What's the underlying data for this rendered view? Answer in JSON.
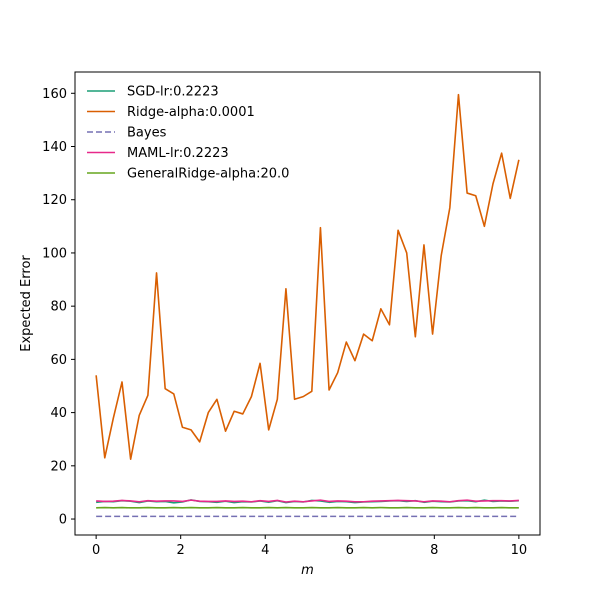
{
  "chart_data": {
    "type": "line",
    "title": "",
    "xlabel": "m",
    "ylabel": "Expected Error",
    "xlim": [
      -0.5,
      10.5
    ],
    "ylim": [
      -6,
      168
    ],
    "xticks": [
      0,
      2,
      4,
      6,
      8,
      10
    ],
    "xtick_labels": [
      "0",
      "2",
      "4",
      "6",
      "8",
      "10"
    ],
    "yticks": [
      0,
      20,
      40,
      60,
      80,
      100,
      120,
      140,
      160
    ],
    "ytick_labels": [
      "0",
      "20",
      "40",
      "60",
      "80",
      "100",
      "120",
      "140",
      "160"
    ],
    "grid": false,
    "legend_position": "top-left",
    "x": [
      0,
      0.204,
      0.408,
      0.612,
      0.816,
      1.02,
      1.224,
      1.429,
      1.633,
      1.837,
      2.041,
      2.245,
      2.449,
      2.653,
      2.857,
      3.061,
      3.265,
      3.469,
      3.673,
      3.878,
      4.082,
      4.286,
      4.49,
      4.694,
      4.898,
      5.102,
      5.306,
      5.51,
      5.714,
      5.918,
      6.122,
      6.327,
      6.531,
      6.735,
      6.939,
      7.143,
      7.347,
      7.551,
      7.755,
      7.959,
      8.163,
      8.367,
      8.571,
      8.776,
      8.98,
      9.184,
      9.388,
      9.592,
      9.796,
      10.0
    ],
    "series": [
      {
        "name": "SGD-lr:0.2223",
        "color": "#1b9e77",
        "dash": "solid",
        "values": [
          6.3,
          6.6,
          6.5,
          6.9,
          6.7,
          6.2,
          6.8,
          6.5,
          6.6,
          6.1,
          6.4,
          7.2,
          6.6,
          6.5,
          6.3,
          6.7,
          6.2,
          6.5,
          6.4,
          6.8,
          6.3,
          6.9,
          6.2,
          6.6,
          6.4,
          7.0,
          6.8,
          6.3,
          6.6,
          6.5,
          6.2,
          6.4,
          6.5,
          6.6,
          6.8,
          6.9,
          6.6,
          6.9,
          6.3,
          6.7,
          6.5,
          6.4,
          6.8,
          6.9,
          6.5,
          7.1,
          6.6,
          6.8,
          6.7,
          6.9
        ]
      },
      {
        "name": "Ridge-alpha:0.0001",
        "color": "#d95f02",
        "dash": "solid",
        "values": [
          54,
          23,
          38,
          51.5,
          22.5,
          39,
          46.5,
          92.5,
          49,
          47,
          34.5,
          33.5,
          29,
          40,
          45,
          33,
          40.5,
          39.5,
          46,
          58.5,
          33.5,
          45,
          86.5,
          45,
          46,
          48,
          109.5,
          48.5,
          55,
          66.5,
          59.5,
          69.5,
          67,
          79,
          73,
          108.5,
          100,
          68.5,
          103,
          69.5,
          99,
          117,
          159.5,
          122.5,
          121.5,
          110,
          126,
          137.5,
          120.5,
          135
        ]
      },
      {
        "name": "Bayes",
        "color": "#7570b3",
        "dash": "dashed",
        "values": [
          1,
          1,
          1,
          1,
          1,
          1,
          1,
          1,
          1,
          1,
          1,
          1,
          1,
          1,
          1,
          1,
          1,
          1,
          1,
          1,
          1,
          1,
          1,
          1,
          1,
          1,
          1,
          1,
          1,
          1,
          1,
          1,
          1,
          1,
          1,
          1,
          1,
          1,
          1,
          1,
          1,
          1,
          1,
          1,
          1,
          1,
          1,
          1,
          1,
          1
        ]
      },
      {
        "name": "MAML-lr:0.2223",
        "color": "#e7298a",
        "dash": "solid",
        "values": [
          6.8,
          6.6,
          6.7,
          7.0,
          6.8,
          6.5,
          6.9,
          6.7,
          6.8,
          6.8,
          6.6,
          7.1,
          6.7,
          6.6,
          6.6,
          6.8,
          6.6,
          6.7,
          6.5,
          6.9,
          6.6,
          7.0,
          6.4,
          6.7,
          6.5,
          6.8,
          7.1,
          6.6,
          6.8,
          6.7,
          6.5,
          6.5,
          6.7,
          6.8,
          6.9,
          7.0,
          6.9,
          6.8,
          6.5,
          6.8,
          6.7,
          6.5,
          6.9,
          7.1,
          6.7,
          6.8,
          6.9,
          6.9,
          6.8,
          7.0
        ]
      },
      {
        "name": "GeneralRidge-alpha:20.0",
        "color": "#66a61e",
        "dash": "solid",
        "values": [
          4.2,
          4.3,
          4.2,
          4.3,
          4.2,
          4.2,
          4.3,
          4.2,
          4.2,
          4.3,
          4.2,
          4.3,
          4.2,
          4.2,
          4.3,
          4.2,
          4.2,
          4.3,
          4.2,
          4.2,
          4.3,
          4.2,
          4.3,
          4.2,
          4.2,
          4.3,
          4.2,
          4.2,
          4.3,
          4.2,
          4.2,
          4.3,
          4.2,
          4.3,
          4.2,
          4.2,
          4.3,
          4.2,
          4.2,
          4.3,
          4.2,
          4.2,
          4.3,
          4.2,
          4.3,
          4.2,
          4.2,
          4.3,
          4.2,
          4.2
        ]
      }
    ]
  }
}
